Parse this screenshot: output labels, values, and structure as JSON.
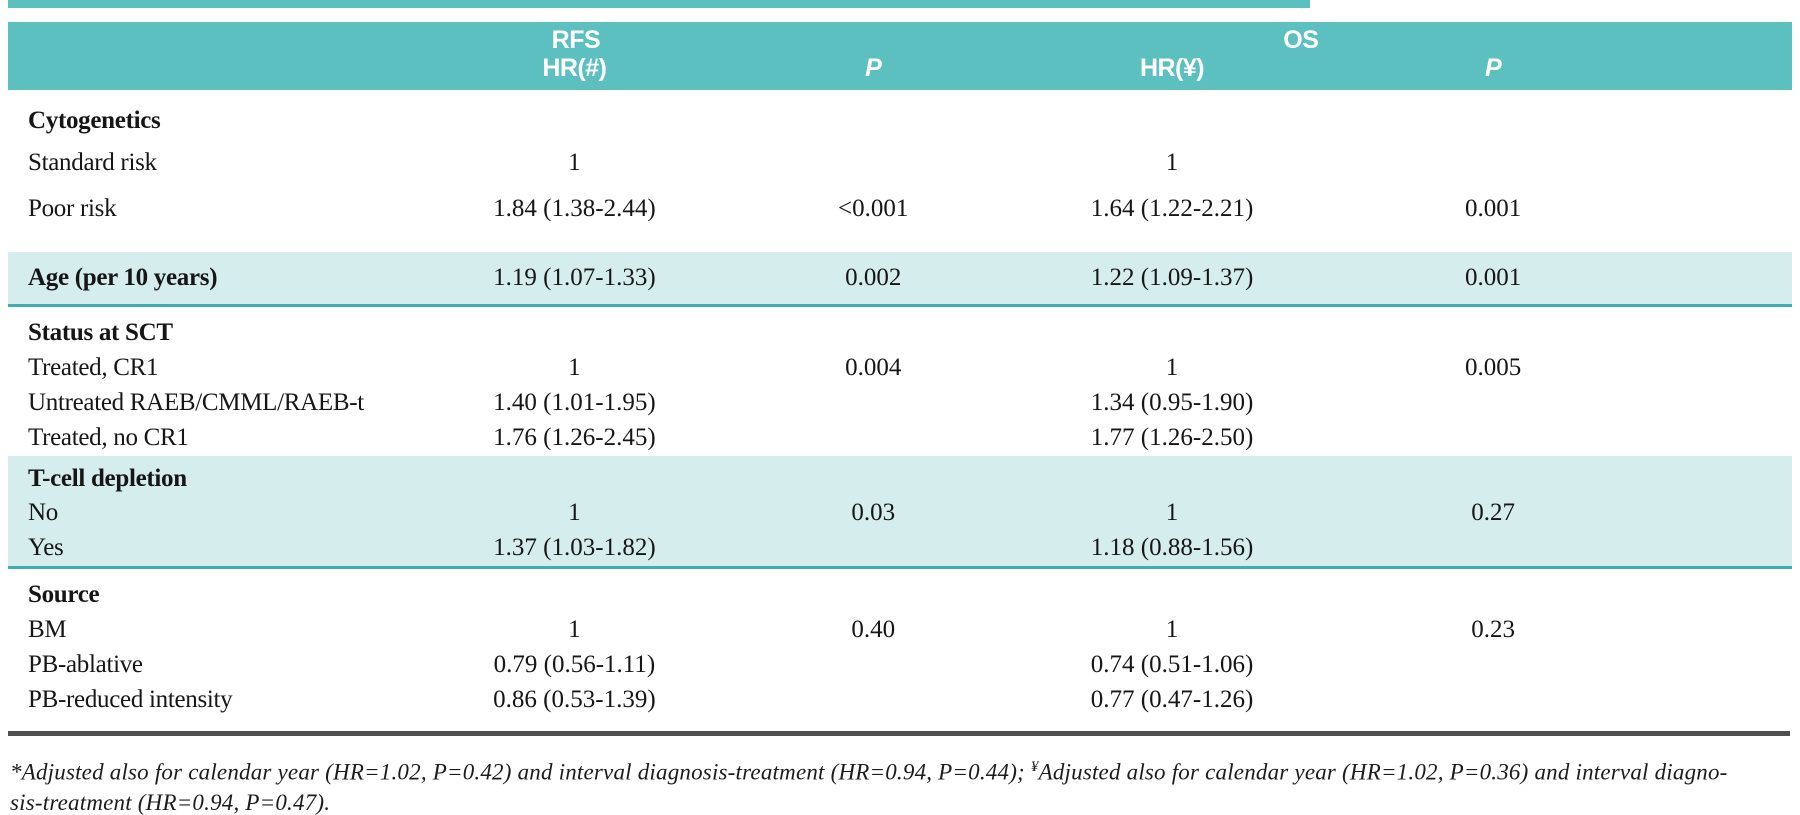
{
  "colors": {
    "header_bg": "#5cbfc0",
    "band_bg": "#d6eded",
    "band_rule": "#3eafb1",
    "dark_rule": "#4e4e4e",
    "header_text": "#ffffff",
    "body_text": "#161616",
    "page_bg": "#ffffff"
  },
  "header": {
    "group_rfs": "RFS",
    "group_os": "OS",
    "col_rfs_hr": "HR(#)",
    "col_rfs_p": "P",
    "col_os_hr": "HR(¥)",
    "col_os_p": "P"
  },
  "rows": [
    {
      "label": "Cytogenetics",
      "rfs_hr": "",
      "rfs_p": "",
      "os_hr": "",
      "os_p": ""
    },
    {
      "label": "Standard risk",
      "rfs_hr": "1",
      "rfs_p": "",
      "os_hr": "1",
      "os_p": ""
    },
    {
      "label": "Poor risk",
      "rfs_hr": "1.84 (1.38-2.44)",
      "rfs_p": "<0.001",
      "os_hr": "1.64 (1.22-2.21)",
      "os_p": "0.001"
    },
    {
      "label": "Age (per 10 years)",
      "rfs_hr": "1.19 (1.07-1.33)",
      "rfs_p": "0.002",
      "os_hr": "1.22 (1.09-1.37)",
      "os_p": "0.001"
    },
    {
      "label": "Status at SCT",
      "rfs_hr": "",
      "rfs_p": "",
      "os_hr": "",
      "os_p": ""
    },
    {
      "label": "Treated, CR1",
      "rfs_hr": "1",
      "rfs_p": "0.004",
      "os_hr": "1",
      "os_p": "0.005"
    },
    {
      "label": "Untreated RAEB/CMML/RAEB-t",
      "rfs_hr": "1.40 (1.01-1.95)",
      "rfs_p": "",
      "os_hr": "1.34 (0.95-1.90)",
      "os_p": ""
    },
    {
      "label": "Treated, no CR1",
      "rfs_hr": "1.76 (1.26-2.45)",
      "rfs_p": "",
      "os_hr": "1.77 (1.26-2.50)",
      "os_p": ""
    },
    {
      "label": "T-cell depletion",
      "rfs_hr": "",
      "rfs_p": "",
      "os_hr": "",
      "os_p": ""
    },
    {
      "label": "No",
      "rfs_hr": "1",
      "rfs_p": "0.03",
      "os_hr": "1",
      "os_p": "0.27"
    },
    {
      "label": "Yes",
      "rfs_hr": "1.37 (1.03-1.82)",
      "rfs_p": "",
      "os_hr": "1.18 (0.88-1.56)",
      "os_p": ""
    },
    {
      "label": "Source",
      "rfs_hr": "",
      "rfs_p": "",
      "os_hr": "",
      "os_p": ""
    },
    {
      "label": "BM",
      "rfs_hr": "1",
      "rfs_p": "0.40",
      "os_hr": "1",
      "os_p": "0.23"
    },
    {
      "label": "PB-ablative",
      "rfs_hr": "0.79 (0.56-1.11)",
      "rfs_p": "",
      "os_hr": "0.74 (0.51-1.06)",
      "os_p": ""
    },
    {
      "label": "PB-reduced intensity",
      "rfs_hr": "0.86 (0.53-1.39)",
      "rfs_p": "",
      "os_hr": "0.77 (0.47-1.26)",
      "os_p": ""
    }
  ],
  "footnote": {
    "line1_pre": "*Adjusted also for calendar year (HR=1.02, P=0.42) and interval diagnosis-treatment (HR=0.94, P=0.44); ",
    "marker_os": "¥",
    "line1_post": "Adjusted also for calendar year (HR=1.02, P=0.36) and interval diagno-",
    "line2": "sis-treatment (HR=0.94, P=0.47)."
  }
}
